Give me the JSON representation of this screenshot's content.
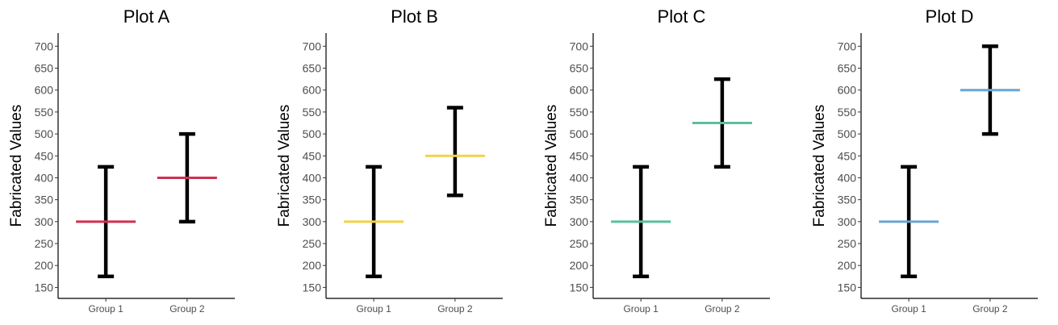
{
  "chart_data": [
    {
      "type": "errorbar",
      "title": "Plot A",
      "ylabel": "Fabricated Values",
      "xlabel": "",
      "categories": [
        "Group 1",
        "Group 2"
      ],
      "mean": [
        300,
        400
      ],
      "lower": [
        175,
        300
      ],
      "upper": [
        425,
        500
      ],
      "color": "#d0304f",
      "ylim": [
        125,
        730
      ],
      "yticks": [
        150,
        200,
        250,
        300,
        350,
        400,
        450,
        500,
        550,
        600,
        650,
        700
      ]
    },
    {
      "type": "errorbar",
      "title": "Plot B",
      "ylabel": "Fabricated Values",
      "xlabel": "",
      "categories": [
        "Group 1",
        "Group 2"
      ],
      "mean": [
        300,
        450
      ],
      "lower": [
        175,
        360
      ],
      "upper": [
        425,
        560
      ],
      "color": "#f2d24a",
      "ylim": [
        125,
        730
      ],
      "yticks": [
        150,
        200,
        250,
        300,
        350,
        400,
        450,
        500,
        550,
        600,
        650,
        700
      ]
    },
    {
      "type": "errorbar",
      "title": "Plot C",
      "ylabel": "Fabricated Values",
      "xlabel": "",
      "categories": [
        "Group 1",
        "Group 2"
      ],
      "mean": [
        300,
        525
      ],
      "lower": [
        175,
        425
      ],
      "upper": [
        425,
        625
      ],
      "color": "#5cbf9c",
      "ylim": [
        125,
        730
      ],
      "yticks": [
        150,
        200,
        250,
        300,
        350,
        400,
        450,
        500,
        550,
        600,
        650,
        700
      ]
    },
    {
      "type": "errorbar",
      "title": "Plot D",
      "ylabel": "Fabricated Values",
      "xlabel": "",
      "categories": [
        "Group 1",
        "Group 2"
      ],
      "mean": [
        300,
        600
      ],
      "lower": [
        175,
        500
      ],
      "upper": [
        425,
        700
      ],
      "color": "#6aa5d2",
      "ylim": [
        125,
        730
      ],
      "yticks": [
        150,
        200,
        250,
        300,
        350,
        400,
        450,
        500,
        550,
        600,
        650,
        700
      ]
    }
  ]
}
